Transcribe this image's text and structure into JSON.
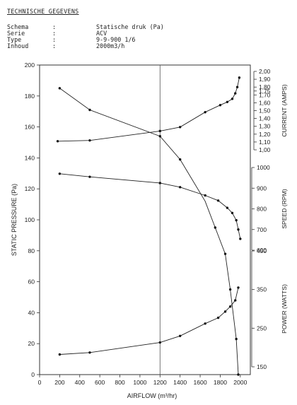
{
  "header": {
    "title": "TECHNISCHE GEGEVENS",
    "specs": [
      {
        "key": "Schema",
        "sep": ":",
        "value": "Statische druk (Pa)"
      },
      {
        "key": "Serie",
        "sep": ":",
        "value": "ACV"
      },
      {
        "key": "Type",
        "sep": ":",
        "value": "9-9-900 1/6"
      },
      {
        "key": "Inhoud",
        "sep": ":",
        "value": "2000m3/h"
      }
    ]
  },
  "chart_data": {
    "type": "line",
    "xlabel": "AIRFLOW (m³/hr)",
    "x_ticks": [
      "0",
      "200",
      "400",
      "600",
      "800",
      "1000",
      "1200",
      "1400",
      "1600",
      "1800",
      "2000"
    ],
    "xlim": [
      0,
      2100
    ],
    "grid": "vertical lines at x = 0, 1200, 2100",
    "left_axis": {
      "label": "STATIC PRESSURE (Pa)",
      "range": [
        0,
        200
      ],
      "ticks": [
        "0",
        "20",
        "40",
        "60",
        "80",
        "100",
        "120",
        "140",
        "160",
        "180",
        "200"
      ]
    },
    "right_axes": [
      {
        "key": "current",
        "label": "CURRENT (AMPS)",
        "range": [
          1.0,
          2.0
        ],
        "ticks": [
          "1,00",
          "1,10",
          "1,20",
          "1,30",
          "1,40",
          "1,50",
          "1,60",
          "1,70",
          "1,75",
          "1,80",
          "1,90",
          "2,00"
        ]
      },
      {
        "key": "speed",
        "label": "SPEED (RPM)",
        "range": [
          600,
          1000
        ],
        "ticks": [
          "600",
          "700",
          "800",
          "900",
          "1000"
        ]
      },
      {
        "key": "power",
        "label": "POWER (WATTS)",
        "range": [
          150,
          450
        ],
        "ticks": [
          "150",
          "250",
          "350",
          "450"
        ]
      }
    ],
    "series": [
      {
        "key": "static_pressure",
        "axis": "left",
        "x": [
          200,
          500,
          1200,
          1400,
          1650,
          1750,
          1850,
          1900,
          1960,
          1980
        ],
        "y": [
          185,
          171,
          154,
          139,
          112,
          95,
          78,
          55,
          23,
          0
        ],
        "markers_x": [
          200,
          500,
          1200,
          1400,
          1750,
          1850,
          1900,
          1960,
          1980
        ]
      },
      {
        "key": "current",
        "axis": "current",
        "x": [
          180,
          500,
          1200,
          1400,
          1650,
          1800,
          1870,
          1920,
          1950,
          1970,
          1990
        ],
        "y": [
          1.11,
          1.12,
          1.24,
          1.29,
          1.48,
          1.57,
          1.61,
          1.65,
          1.72,
          1.8,
          1.92
        ]
      },
      {
        "key": "speed",
        "axis": "speed",
        "x": [
          200,
          500,
          1200,
          1400,
          1650,
          1780,
          1870,
          1920,
          1960,
          1980,
          2000
        ],
        "y": [
          970,
          955,
          925,
          905,
          865,
          840,
          805,
          780,
          745,
          700,
          655
        ]
      },
      {
        "key": "power",
        "axis": "power",
        "x": [
          200,
          500,
          1200,
          1400,
          1650,
          1780,
          1850,
          1900,
          1950,
          1980
        ],
        "y": [
          182,
          187,
          213,
          230,
          262,
          277,
          293,
          306,
          322,
          355
        ]
      }
    ]
  }
}
